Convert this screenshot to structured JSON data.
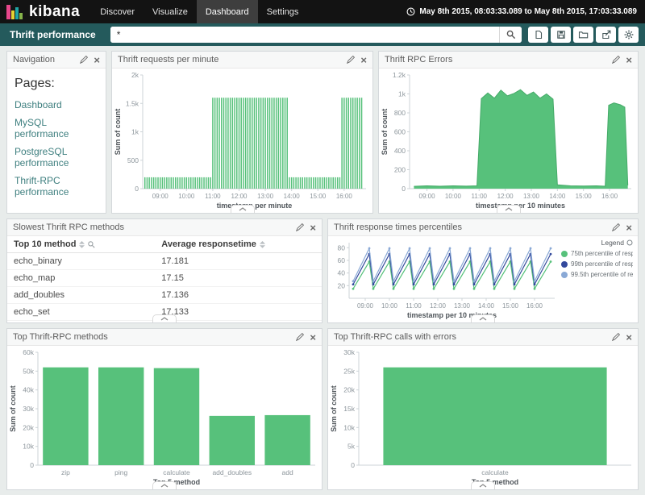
{
  "colors": {
    "accent_green": "#57c17b",
    "toolbar_teal": "#245a5c",
    "topbar_black": "#131313",
    "series_navy": "#33499c",
    "series_lightblue": "#8aa9d6"
  },
  "header": {
    "logo_text": "kibana",
    "nav": [
      {
        "label": "Discover",
        "active": false
      },
      {
        "label": "Visualize",
        "active": false
      },
      {
        "label": "Dashboard",
        "active": true
      },
      {
        "label": "Settings",
        "active": false
      }
    ],
    "time_range": "May 8th 2015, 08:03:33.089 to May 8th 2015, 17:03:33.089",
    "clock_icon": "clock-icon"
  },
  "toolbar": {
    "dashboard_title": "Thrift performance",
    "query_value": "*",
    "search_icon": "magnifier-icon",
    "buttons": [
      {
        "name": "new",
        "icon": "new-document-icon"
      },
      {
        "name": "save",
        "icon": "save-icon"
      },
      {
        "name": "open",
        "icon": "folder-open-icon"
      },
      {
        "name": "share",
        "icon": "share-icon"
      },
      {
        "name": "options",
        "icon": "gear-icon"
      }
    ]
  },
  "panel_actions": {
    "edit_icon": "pencil-icon",
    "close_icon": "x-icon",
    "collapse_icon": "chevron-up-icon"
  },
  "panels": {
    "navigation": {
      "title": "Navigation",
      "heading": "Pages:",
      "links": [
        "Dashboard",
        "MySQL performance",
        "PostgreSQL performance",
        "Thrift-RPC performance"
      ]
    },
    "requests": {
      "title": "Thrift requests per minute"
    },
    "errors": {
      "title": "Thrift RPC Errors"
    },
    "slowest": {
      "title": "Slowest Thrift RPC methods",
      "table": {
        "columns": [
          "Top 10 method",
          "Average responsetime"
        ],
        "rows": [
          [
            "echo_binary",
            "17.181"
          ],
          [
            "echo_map",
            "17.15"
          ],
          [
            "add_doubles",
            "17.136"
          ],
          [
            "echo_set",
            "17.133"
          ]
        ]
      }
    },
    "percentiles": {
      "title": "Thrift response times percentiles"
    },
    "top_methods": {
      "title": "Top Thrift-RPC methods"
    },
    "top_errors": {
      "title": "Top Thrift-RPC calls with errors"
    }
  },
  "chart_data": [
    {
      "id": "thrift-requests-per-minute",
      "type": "bar",
      "title": "Thrift requests per minute",
      "xlabel": "timestamp per minute",
      "ylabel": "Sum of count",
      "ylim": [
        0,
        2000
      ],
      "yticks": [
        0,
        500,
        1000,
        1500,
        2000
      ],
      "ytick_labels": [
        "0",
        "500",
        "1k",
        "1.5k",
        "2k"
      ],
      "x_domain": [
        "08:20",
        "16:50"
      ],
      "xticks": [
        "09:00",
        "10:00",
        "11:00",
        "12:00",
        "13:00",
        "14:00",
        "15:00",
        "16:00"
      ],
      "bar_interval_minutes": 5,
      "color": "#57c17b",
      "segments": [
        {
          "from": "08:25",
          "to": "11:00",
          "value": 200
        },
        {
          "from": "11:00",
          "to": "13:55",
          "value": 1600
        },
        {
          "from": "13:55",
          "to": "15:55",
          "value": 200
        },
        {
          "from": "15:55",
          "to": "16:45",
          "value": 1600
        }
      ]
    },
    {
      "id": "thrift-rpc-errors",
      "type": "area",
      "title": "Thrift RPC Errors",
      "xlabel": "timestamp per 10 minutes",
      "ylabel": "Sum of count",
      "ylim": [
        0,
        1200
      ],
      "yticks": [
        0,
        200,
        400,
        600,
        800,
        1000,
        1200
      ],
      "ytick_labels": [
        "0",
        "200",
        "400",
        "600",
        "800",
        "1k",
        "1.2k"
      ],
      "x_domain": [
        "08:20",
        "16:50"
      ],
      "xticks": [
        "09:00",
        "10:00",
        "11:00",
        "12:00",
        "13:00",
        "14:00",
        "15:00",
        "16:00"
      ],
      "color": "#57c17b",
      "points": [
        [
          "08:30",
          25
        ],
        [
          "09:00",
          30
        ],
        [
          "09:30",
          26
        ],
        [
          "10:00",
          30
        ],
        [
          "10:30",
          27
        ],
        [
          "10:55",
          30
        ],
        [
          "11:05",
          950
        ],
        [
          "11:20",
          1010
        ],
        [
          "11:35",
          955
        ],
        [
          "11:50",
          1040
        ],
        [
          "12:05",
          980
        ],
        [
          "12:20",
          1005
        ],
        [
          "12:35",
          1045
        ],
        [
          "12:50",
          985
        ],
        [
          "13:05",
          1020
        ],
        [
          "13:20",
          955
        ],
        [
          "13:35",
          1000
        ],
        [
          "13:50",
          945
        ],
        [
          "14:00",
          40
        ],
        [
          "14:30",
          30
        ],
        [
          "15:00",
          28
        ],
        [
          "15:30",
          30
        ],
        [
          "15:50",
          26
        ],
        [
          "15:58",
          880
        ],
        [
          "16:10",
          905
        ],
        [
          "16:25",
          885
        ],
        [
          "16:35",
          860
        ],
        [
          "16:42",
          35
        ]
      ]
    },
    {
      "id": "thrift-response-times-percentiles",
      "type": "line",
      "title": "Thrift response times percentiles",
      "xlabel": "timestamp per 10 minutes",
      "ylabel": "",
      "ylim": [
        0,
        88
      ],
      "yticks": [
        20,
        40,
        60,
        80
      ],
      "ytick_labels": [
        "20",
        "40",
        "60",
        "80"
      ],
      "x_domain": [
        "08:20",
        "16:50"
      ],
      "xticks": [
        "09:00",
        "10:00",
        "11:00",
        "12:00",
        "13:00",
        "14:00",
        "15:00",
        "16:00"
      ],
      "legend_title": "Legend",
      "series": [
        {
          "label": "75th percentile of resp...",
          "color": "#57c17b",
          "points": [
            [
              "08:30",
              15
            ],
            [
              "09:10",
              58
            ],
            [
              "09:20",
              15
            ],
            [
              "10:00",
              58
            ],
            [
              "10:10",
              15
            ],
            [
              "10:50",
              58
            ],
            [
              "11:00",
              15
            ],
            [
              "11:40",
              58
            ],
            [
              "11:50",
              15
            ],
            [
              "12:30",
              58
            ],
            [
              "12:40",
              15
            ],
            [
              "13:20",
              58
            ],
            [
              "13:30",
              15
            ],
            [
              "14:10",
              58
            ],
            [
              "14:20",
              15
            ],
            [
              "15:00",
              58
            ],
            [
              "15:10",
              15
            ],
            [
              "15:50",
              58
            ],
            [
              "16:00",
              15
            ],
            [
              "16:40",
              58
            ]
          ]
        },
        {
          "label": "99th percentile of resp...",
          "color": "#33499c",
          "points": [
            [
              "08:30",
              22
            ],
            [
              "09:10",
              70
            ],
            [
              "09:20",
              22
            ],
            [
              "10:00",
              70
            ],
            [
              "10:10",
              22
            ],
            [
              "10:50",
              70
            ],
            [
              "11:00",
              22
            ],
            [
              "11:40",
              70
            ],
            [
              "11:50",
              22
            ],
            [
              "12:30",
              70
            ],
            [
              "12:40",
              22
            ],
            [
              "13:20",
              70
            ],
            [
              "13:30",
              22
            ],
            [
              "14:10",
              70
            ],
            [
              "14:20",
              22
            ],
            [
              "15:00",
              70
            ],
            [
              "15:10",
              22
            ],
            [
              "15:50",
              70
            ],
            [
              "16:00",
              22
            ],
            [
              "16:40",
              70
            ]
          ]
        },
        {
          "label": "99.5th percentile of re...",
          "color": "#8aa9d6",
          "points": [
            [
              "08:30",
              27
            ],
            [
              "09:10",
              79
            ],
            [
              "09:20",
              27
            ],
            [
              "10:00",
              79
            ],
            [
              "10:10",
              27
            ],
            [
              "10:50",
              79
            ],
            [
              "11:00",
              27
            ],
            [
              "11:40",
              79
            ],
            [
              "11:50",
              27
            ],
            [
              "12:30",
              79
            ],
            [
              "12:40",
              27
            ],
            [
              "13:20",
              79
            ],
            [
              "13:30",
              27
            ],
            [
              "14:10",
              79
            ],
            [
              "14:20",
              27
            ],
            [
              "15:00",
              79
            ],
            [
              "15:10",
              27
            ],
            [
              "15:50",
              79
            ],
            [
              "16:00",
              27
            ],
            [
              "16:40",
              79
            ]
          ]
        }
      ]
    },
    {
      "id": "top-thrift-rpc-methods",
      "type": "bar",
      "title": "Top Thrift-RPC methods",
      "categories": [
        "zip",
        "ping",
        "calculate",
        "add_doubles",
        "add"
      ],
      "values": [
        52000,
        52000,
        51600,
        26200,
        26600
      ],
      "xlabel": "Top 5 method",
      "ylabel": "Sum of count",
      "ylim": [
        0,
        60000
      ],
      "yticks": [
        0,
        10000,
        20000,
        30000,
        40000,
        50000,
        60000
      ],
      "ytick_labels": [
        "0",
        "10k",
        "20k",
        "30k",
        "40k",
        "50k",
        "60k"
      ],
      "color": "#57c17b"
    },
    {
      "id": "top-thrift-rpc-calls-with-errors",
      "type": "bar",
      "title": "Top Thrift-RPC calls with errors",
      "categories": [
        "calculate"
      ],
      "values": [
        26000
      ],
      "xlabel": "Top 5 method",
      "ylabel": "Sum of count",
      "ylim": [
        0,
        30000
      ],
      "yticks": [
        0,
        5000,
        10000,
        15000,
        20000,
        25000,
        30000
      ],
      "ytick_labels": [
        "0",
        "5k",
        "10k",
        "15k",
        "20k",
        "25k",
        "30k"
      ],
      "color": "#57c17b"
    }
  ]
}
